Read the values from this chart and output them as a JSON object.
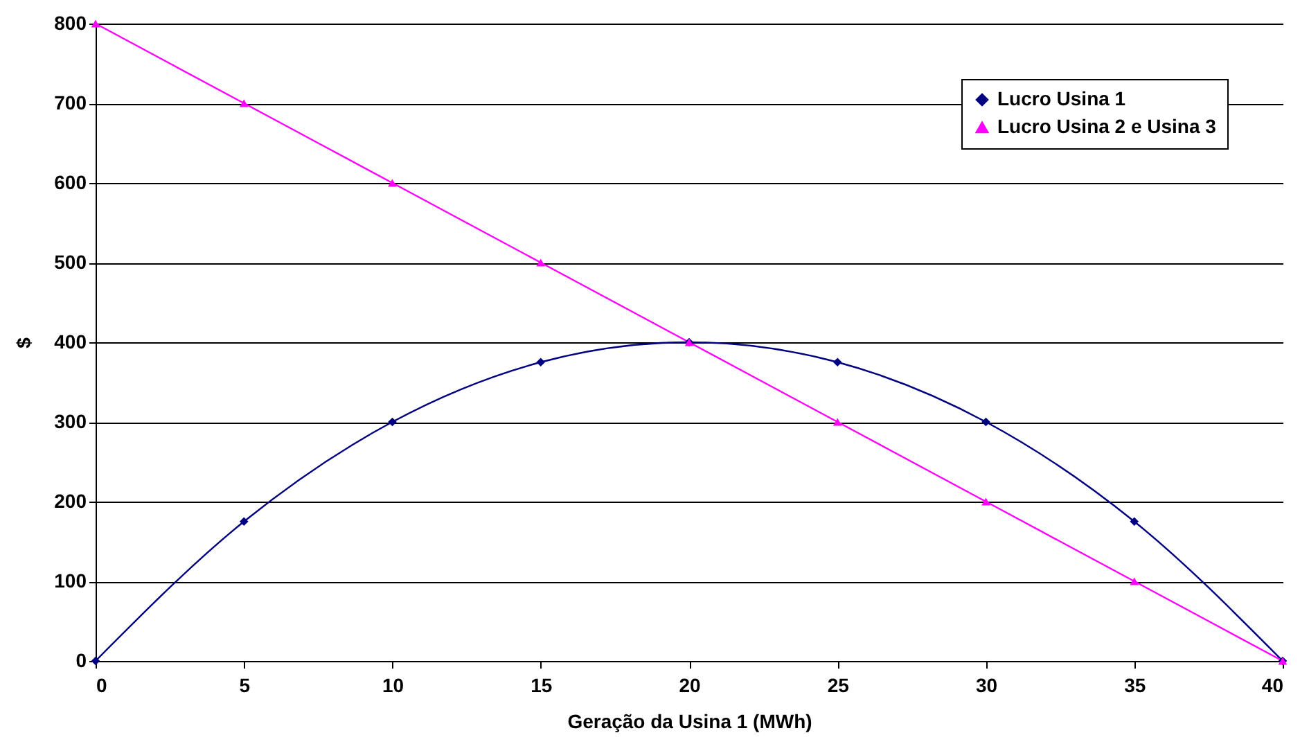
{
  "chart_data": {
    "type": "line",
    "xlabel": "Geração da Usina 1 (MWh)",
    "ylabel": "$",
    "x": [
      0,
      5,
      10,
      15,
      20,
      25,
      30,
      35,
      40
    ],
    "series": [
      {
        "name": "Lucro Usina 1",
        "color": "#000080",
        "marker": "diamond",
        "values": [
          0,
          175,
          300,
          375,
          400,
          375,
          300,
          175,
          0
        ]
      },
      {
        "name": "Lucro Usina 2 e Usina 3",
        "color": "#ff00ff",
        "marker": "triangle",
        "values": [
          800,
          700,
          600,
          500,
          400,
          300,
          200,
          100,
          0
        ]
      }
    ],
    "xlim": [
      0,
      40
    ],
    "xticks": [
      0,
      5,
      10,
      15,
      20,
      25,
      30,
      35,
      40
    ],
    "ylim": [
      0,
      800
    ],
    "yticks": [
      0,
      100,
      200,
      300,
      400,
      500,
      600,
      700,
      800
    ],
    "grid": "y",
    "legend": "top right",
    "line_style": "solid"
  }
}
